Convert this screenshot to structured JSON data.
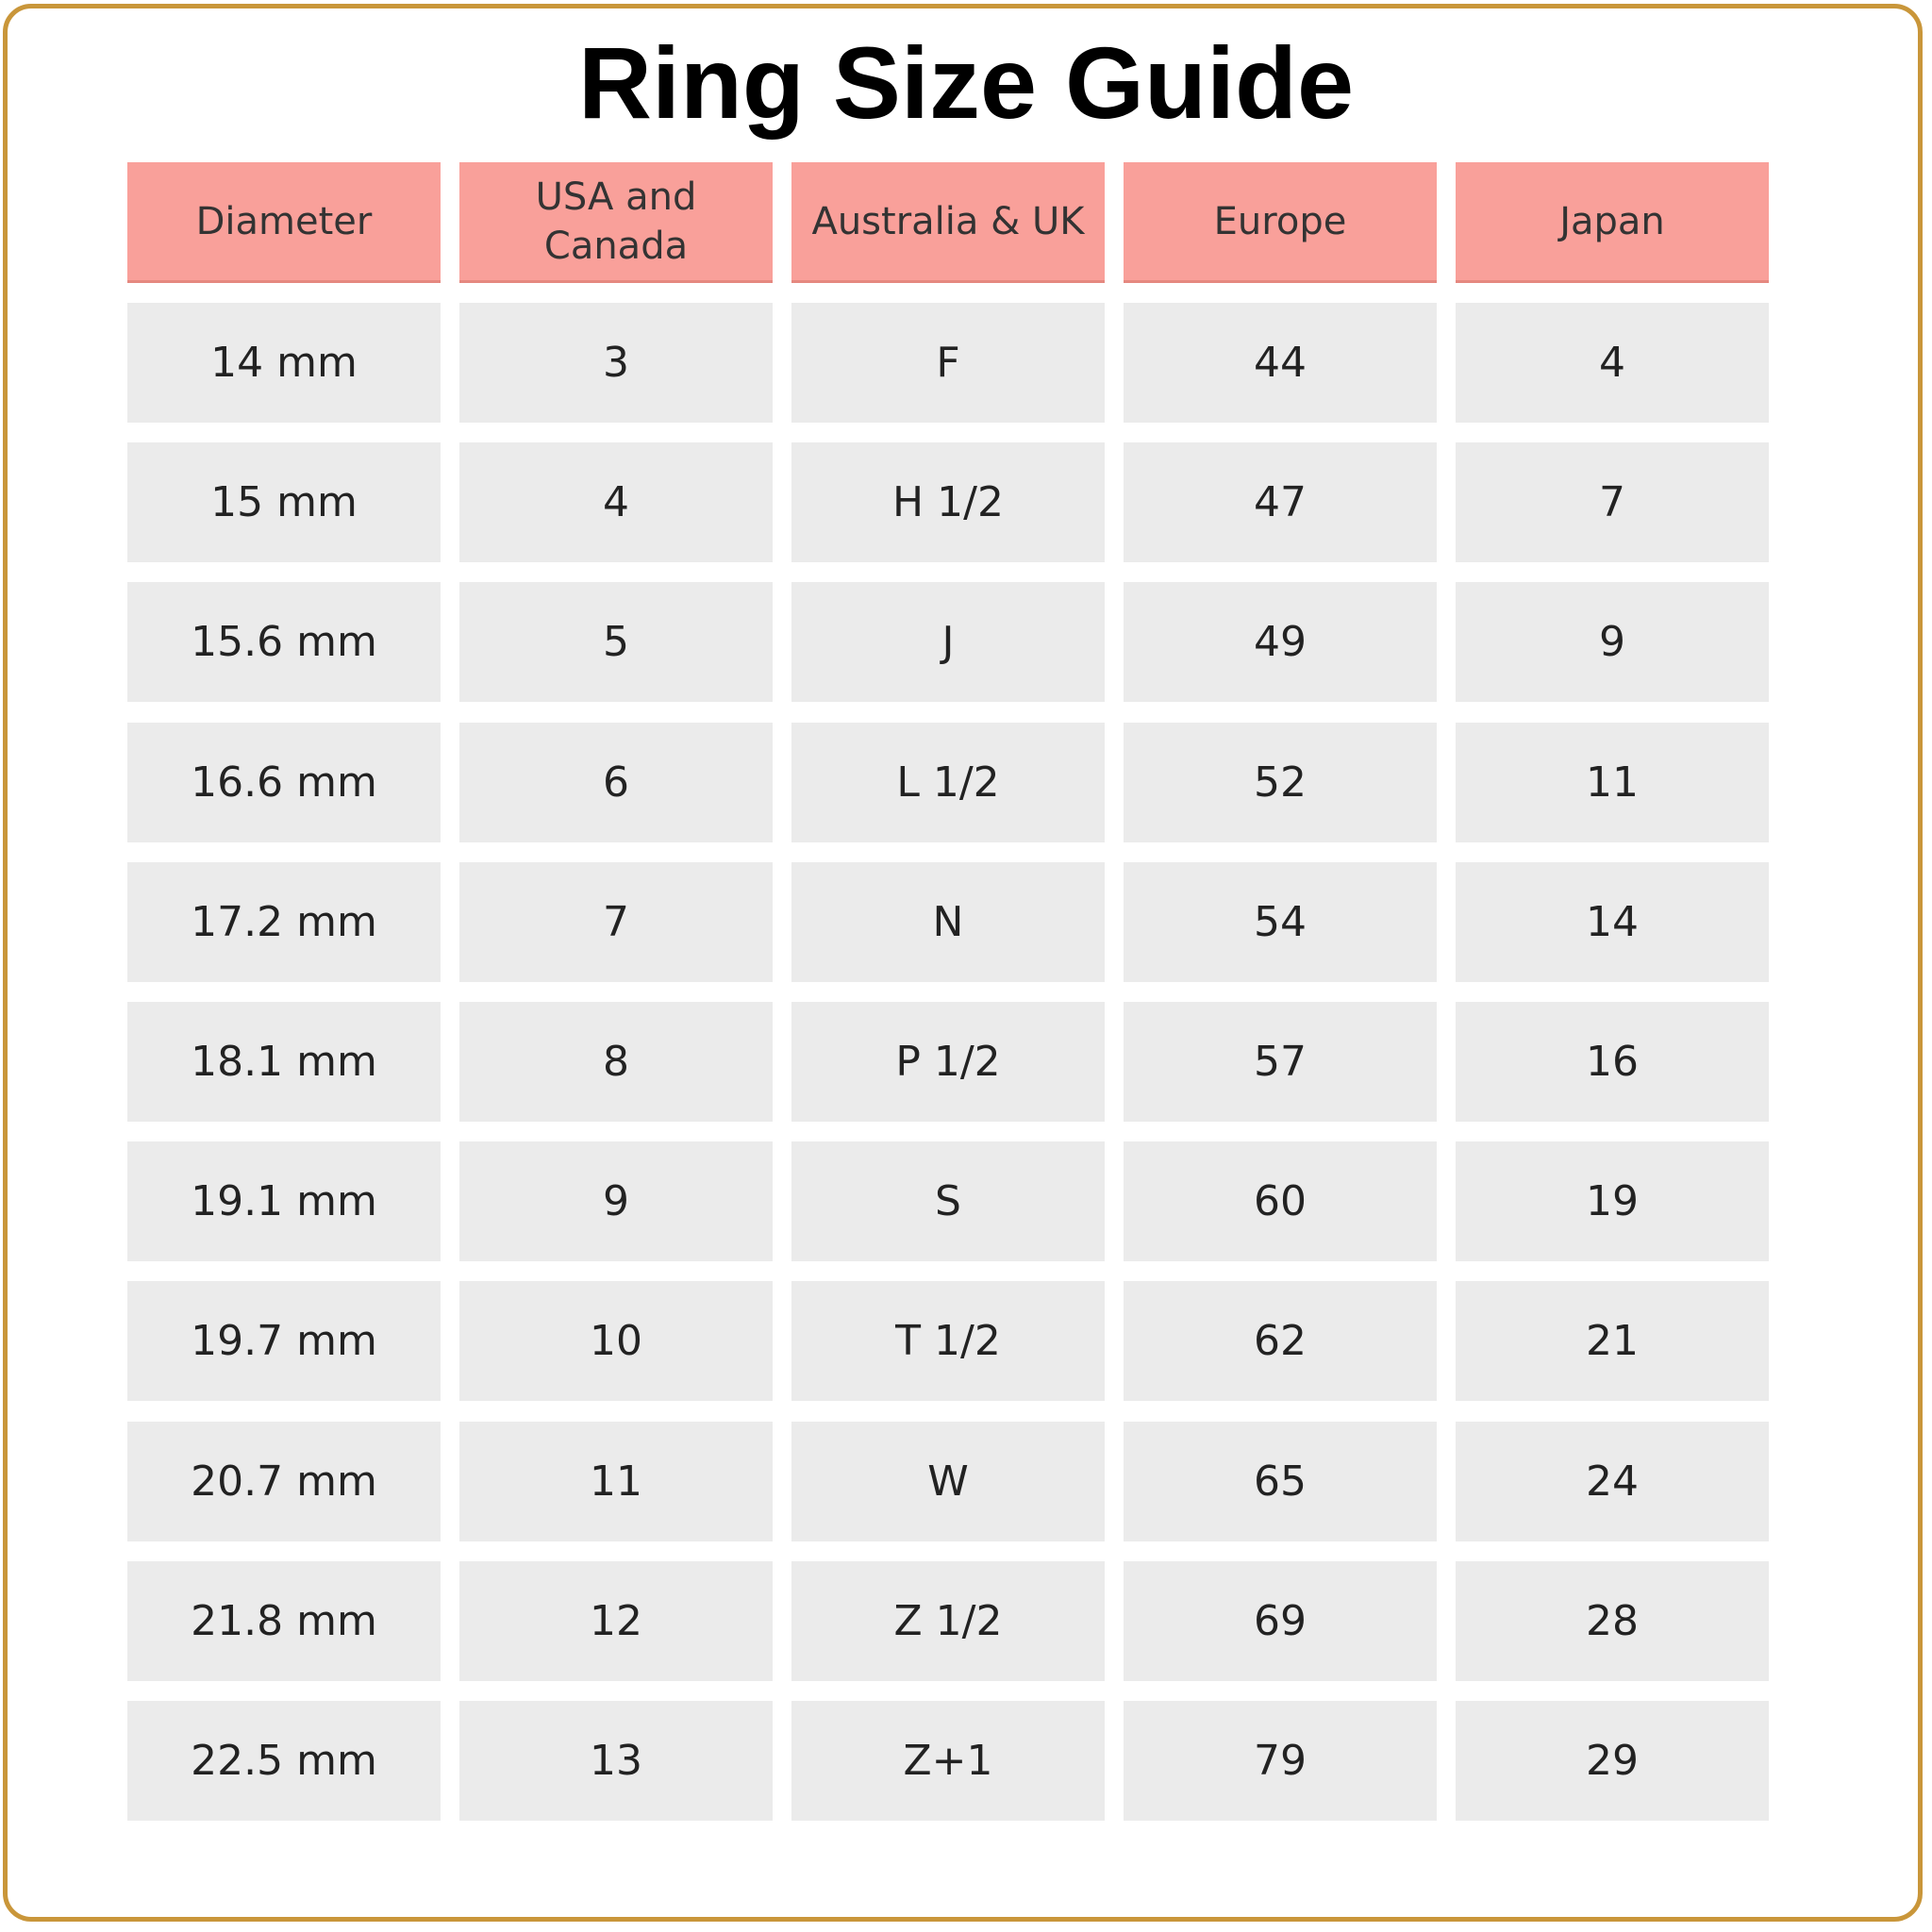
{
  "title": "Ring Size Guide",
  "table": {
    "header": [
      "Diameter",
      "USA and Canada",
      "Australia & UK",
      "Europe",
      "Japan"
    ],
    "rows": [
      [
        "14 mm",
        "3",
        "F",
        "44",
        "4"
      ],
      [
        "15 mm",
        "4",
        "H 1/2",
        "47",
        "7"
      ],
      [
        "15.6 mm",
        "5",
        "J",
        "49",
        "9"
      ],
      [
        "16.6 mm",
        "6",
        "L 1/2",
        "52",
        "11"
      ],
      [
        "17.2 mm",
        "7",
        "N",
        "54",
        "14"
      ],
      [
        "18.1 mm",
        "8",
        "P 1/2",
        "57",
        "16"
      ],
      [
        "19.1 mm",
        "9",
        "S",
        "60",
        "19"
      ],
      [
        "19.7 mm",
        "10",
        "T 1/2",
        "62",
        "21"
      ],
      [
        "20.7 mm",
        "11",
        "W",
        "65",
        "24"
      ],
      [
        "21.8 mm",
        "12",
        "Z 1/2",
        "69",
        "28"
      ],
      [
        "22.5 mm",
        "13",
        "Z+1",
        "79",
        "29"
      ]
    ]
  }
}
